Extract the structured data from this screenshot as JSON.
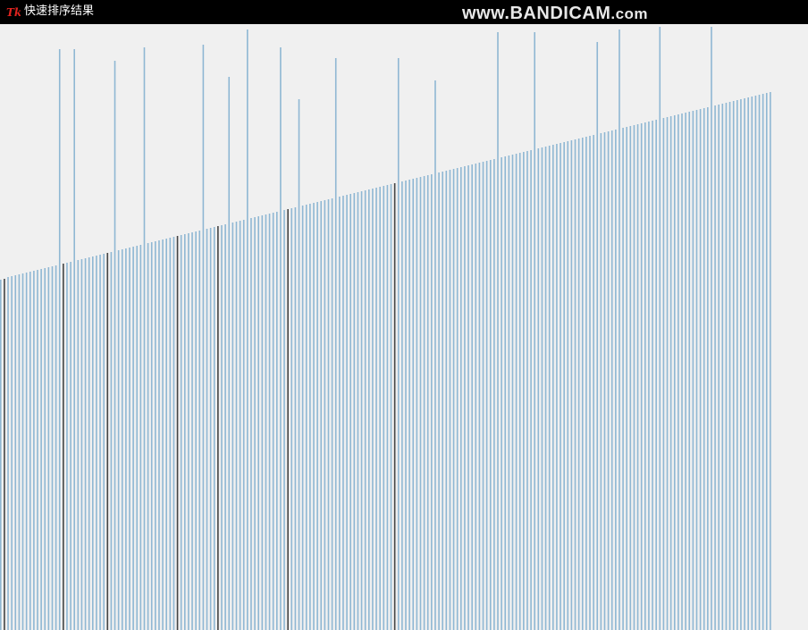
{
  "window": {
    "title": "快速排序结果",
    "icon": "tk-feather-icon"
  },
  "watermark": {
    "main": "www.BANDICAM",
    "suffix": ".com"
  },
  "colors": {
    "titlebar": "#000000",
    "background": "#f0f0f0",
    "bar": "#8fb7d3",
    "bar_active": "#444444"
  },
  "chart_data": {
    "type": "bar",
    "title": "",
    "xlabel": "",
    "ylabel": "",
    "bar_count": 210,
    "values": [
      392,
      393,
      395,
      396,
      397,
      398,
      399,
      400,
      401,
      402,
      403,
      404,
      405,
      406,
      407,
      408,
      409,
      410,
      411,
      412,
      413,
      414,
      415,
      416,
      417,
      418,
      419,
      420,
      421,
      422,
      423,
      424,
      425,
      426,
      427,
      428,
      429,
      430,
      431,
      432,
      433,
      434,
      435,
      436,
      437,
      438,
      439,
      440,
      441,
      442,
      443,
      444,
      445,
      446,
      447,
      448,
      449,
      450,
      451,
      452,
      453,
      454,
      455,
      456,
      457,
      458,
      459,
      460,
      461,
      462,
      463,
      464,
      465,
      466,
      467,
      468,
      469,
      470,
      471,
      472,
      473,
      474,
      475,
      476,
      477,
      478,
      479,
      480,
      481,
      482,
      483,
      484,
      485,
      486,
      487,
      488,
      489,
      490,
      491,
      492,
      493,
      494,
      495,
      496,
      497,
      498,
      499,
      500,
      501,
      502,
      503,
      504,
      505,
      506,
      507,
      508,
      509,
      510,
      511,
      512,
      513,
      514,
      515,
      516,
      517,
      518,
      519,
      520,
      521,
      522,
      523,
      524,
      525,
      526,
      527,
      528,
      529,
      530,
      531,
      532,
      533,
      534,
      535,
      536,
      537,
      538,
      539,
      540,
      541,
      542,
      543,
      544,
      545,
      546,
      547,
      548,
      549,
      550,
      551,
      552,
      553,
      554,
      555,
      556,
      557,
      558,
      559,
      560,
      561,
      562,
      563,
      564,
      565,
      566,
      567,
      568,
      569,
      570,
      571,
      572,
      573,
      574,
      575,
      576,
      577,
      578,
      579,
      580,
      581,
      582,
      583,
      584,
      585,
      586,
      587,
      588,
      589,
      590,
      591,
      592,
      593,
      594,
      595,
      596,
      597,
      598,
      599,
      600,
      601,
      602
    ],
    "spikes": [
      {
        "index": 16,
        "value": 650
      },
      {
        "index": 20,
        "value": 650
      },
      {
        "index": 31,
        "value": 637
      },
      {
        "index": 39,
        "value": 652
      },
      {
        "index": 55,
        "value": 655
      },
      {
        "index": 62,
        "value": 619
      },
      {
        "index": 67,
        "value": 672
      },
      {
        "index": 76,
        "value": 652
      },
      {
        "index": 81,
        "value": 594
      },
      {
        "index": 91,
        "value": 640
      },
      {
        "index": 108,
        "value": 640
      },
      {
        "index": 118,
        "value": 615
      },
      {
        "index": 135,
        "value": 669
      },
      {
        "index": 145,
        "value": 669
      },
      {
        "index": 162,
        "value": 658
      },
      {
        "index": 168,
        "value": 672
      },
      {
        "index": 179,
        "value": 675
      },
      {
        "index": 193,
        "value": 675
      }
    ],
    "active_bars": [
      1,
      17,
      29,
      48,
      59,
      78,
      107
    ]
  }
}
